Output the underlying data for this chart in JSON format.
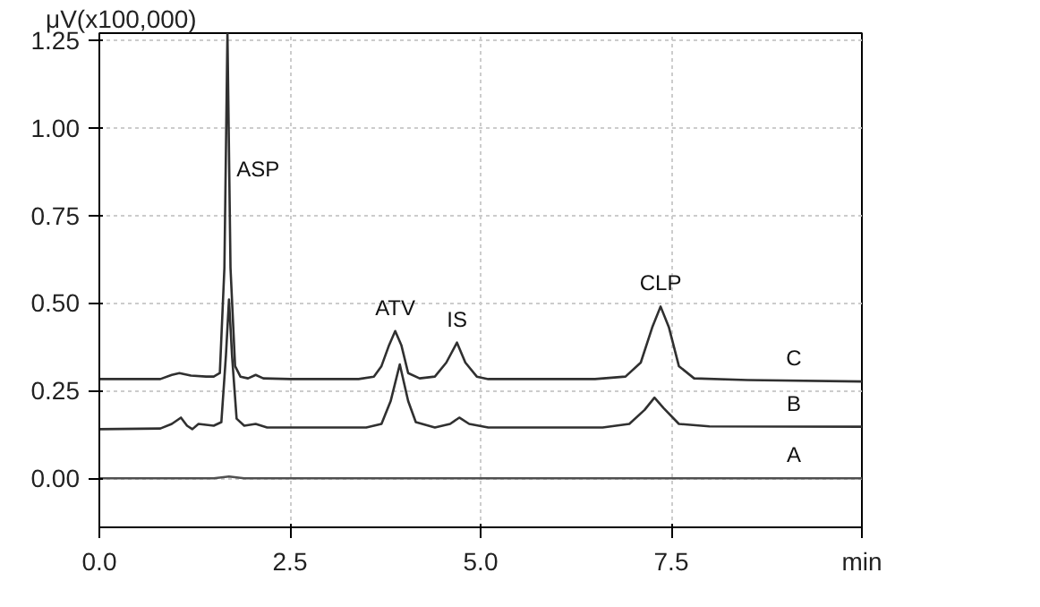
{
  "chart_data": {
    "type": "line",
    "ylabel": "μV(x100,000)",
    "xlim": [
      0,
      10
    ],
    "ylim": [
      -0.14,
      1.27
    ],
    "xticks": [
      {
        "value": 0,
        "label": "0.0"
      },
      2.5,
      {
        "value": 5,
        "label": "5.0"
      },
      7.5,
      {
        "value": 10,
        "label": "min"
      }
    ],
    "yticks": [
      {
        "value": 0,
        "label": "0.00"
      },
      0.25,
      {
        "value": 0.5,
        "label": "0.50"
      },
      0.75,
      {
        "value": 1,
        "label": "1.00"
      },
      1.25
    ],
    "grid": true,
    "line_style": "solid",
    "series": [
      {
        "name": "C",
        "color": "#303030",
        "x": [
          0,
          0.8,
          0.95,
          1.05,
          1.2,
          1.4,
          1.5,
          1.58,
          1.64,
          1.68,
          1.72,
          1.78,
          1.85,
          1.95,
          2.05,
          2.15,
          2.5,
          3.4,
          3.6,
          3.7,
          3.8,
          3.88,
          3.96,
          4.05,
          4.2,
          4.4,
          4.55,
          4.69,
          4.8,
          4.95,
          5.1,
          6.5,
          6.9,
          7.1,
          7.25,
          7.36,
          7.47,
          7.6,
          7.8,
          8.5,
          10
        ],
        "values": [
          0.283,
          0.283,
          0.295,
          0.3,
          0.293,
          0.29,
          0.29,
          0.3,
          0.6,
          1.27,
          0.6,
          0.32,
          0.29,
          0.285,
          0.295,
          0.285,
          0.283,
          0.283,
          0.29,
          0.32,
          0.38,
          0.42,
          0.38,
          0.3,
          0.285,
          0.29,
          0.33,
          0.387,
          0.33,
          0.29,
          0.283,
          0.283,
          0.29,
          0.33,
          0.43,
          0.49,
          0.43,
          0.32,
          0.285,
          0.28,
          0.276
        ]
      },
      {
        "name": "B",
        "color": "#303030",
        "x": [
          0,
          0.8,
          0.95,
          1.07,
          1.15,
          1.22,
          1.3,
          1.5,
          1.6,
          1.66,
          1.7,
          1.74,
          1.8,
          1.9,
          2.05,
          2.2,
          3.5,
          3.7,
          3.82,
          3.94,
          4.05,
          4.15,
          4.4,
          4.6,
          4.72,
          4.85,
          5.1,
          6.6,
          6.95,
          7.15,
          7.28,
          7.4,
          7.6,
          8,
          10
        ],
        "values": [
          0.14,
          0.142,
          0.155,
          0.173,
          0.15,
          0.14,
          0.155,
          0.15,
          0.16,
          0.35,
          0.51,
          0.35,
          0.17,
          0.15,
          0.155,
          0.145,
          0.145,
          0.155,
          0.22,
          0.325,
          0.22,
          0.16,
          0.145,
          0.155,
          0.173,
          0.155,
          0.145,
          0.145,
          0.155,
          0.195,
          0.23,
          0.2,
          0.155,
          0.148,
          0.147
        ]
      },
      {
        "name": "A",
        "color": "#505050",
        "x": [
          0,
          1.5,
          1.7,
          1.9,
          10
        ],
        "values": [
          0,
          0,
          0.005,
          0,
          0
        ]
      }
    ],
    "annotations": [
      {
        "text": "ASP",
        "x": 1.705,
        "y": 0.85
      },
      {
        "text": "ATV",
        "x": 3.88,
        "y": 0.42
      },
      {
        "text": "IS",
        "x": 4.69,
        "y": 0.387
      },
      {
        "text": "CLP",
        "x": 7.36,
        "y": 0.49
      }
    ]
  }
}
